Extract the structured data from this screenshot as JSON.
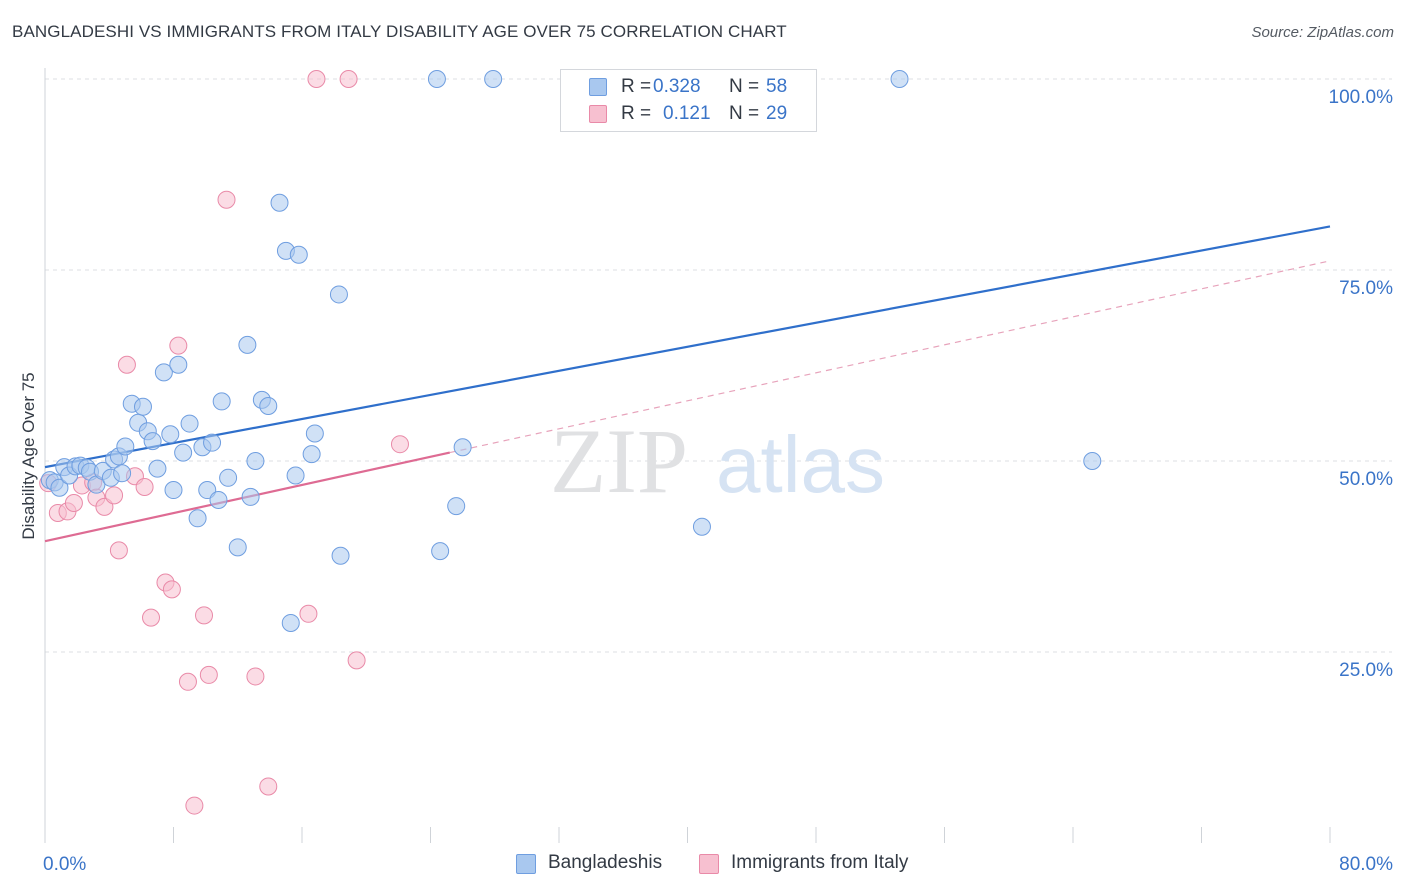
{
  "title": "BANGLADESHI VS IMMIGRANTS FROM ITALY DISABILITY AGE OVER 75 CORRELATION CHART",
  "source": "Source: ZipAtlas.com",
  "watermark": {
    "zip": "ZIP",
    "atlas": "atlas"
  },
  "legend": {
    "rows": [
      {
        "r_label": "R =",
        "r_value": "0.328",
        "n_label": "N =",
        "n_value": "58",
        "color": "#a9c8ef",
        "border": "#6f9ee0"
      },
      {
        "r_label": "R =",
        "r_value": "0.121",
        "n_label": "N =",
        "n_value": "29",
        "color": "#f7c0d0",
        "border": "#e98aa8"
      }
    ]
  },
  "bottom_legend": [
    {
      "label": "Bangladeshis",
      "color": "#a9c8ef",
      "border": "#6f9ee0"
    },
    {
      "label": "Immigrants from Italy",
      "color": "#f7c0d0",
      "border": "#e98aa8"
    }
  ],
  "chart_data": {
    "type": "scatter",
    "title": "BANGLADESHI VS IMMIGRANTS FROM ITALY DISABILITY AGE OVER 75 CORRELATION CHART",
    "xlabel": "",
    "ylabel": "Disability Age Over 75",
    "xlim": [
      0,
      80
    ],
    "ylim": [
      0,
      100
    ],
    "x_ticks": [
      {
        "value": 0,
        "label": "0.0%"
      },
      {
        "value": 80,
        "label": "80.0%"
      }
    ],
    "y_ticks": [
      {
        "value": 25,
        "label": "25.0%"
      },
      {
        "value": 50,
        "label": "50.0%"
      },
      {
        "value": 75,
        "label": "75.0%"
      },
      {
        "value": 100,
        "label": "100.0%"
      }
    ],
    "grid": "horizontal-dashed",
    "legend_position": "top-center",
    "series": [
      {
        "name": "Bangladeshis",
        "color": "#6f9ee0",
        "fill": "#a9c8ef",
        "r": 0.328,
        "n": 58,
        "trend": {
          "x": [
            0,
            80
          ],
          "y": [
            49.2,
            80.7
          ],
          "style": "solid",
          "color": "#2f6fcb"
        },
        "points": [
          [
            0.3,
            47.5
          ],
          [
            0.6,
            47.2
          ],
          [
            0.9,
            46.5
          ],
          [
            1.2,
            49.2
          ],
          [
            1.5,
            48.1
          ],
          [
            1.9,
            49.3
          ],
          [
            2.2,
            49.4
          ],
          [
            2.6,
            49.1
          ],
          [
            2.8,
            48.6
          ],
          [
            3.2,
            46.9
          ],
          [
            3.6,
            48.7
          ],
          [
            4.1,
            47.8
          ],
          [
            4.3,
            50.2
          ],
          [
            4.6,
            50.6
          ],
          [
            4.8,
            48.4
          ],
          [
            5.0,
            51.9
          ],
          [
            5.4,
            57.5
          ],
          [
            5.8,
            55.0
          ],
          [
            6.1,
            57.1
          ],
          [
            6.4,
            53.9
          ],
          [
            6.7,
            52.6
          ],
          [
            7.0,
            49.0
          ],
          [
            7.4,
            61.6
          ],
          [
            7.8,
            53.5
          ],
          [
            8.0,
            46.2
          ],
          [
            8.3,
            62.6
          ],
          [
            8.6,
            51.1
          ],
          [
            9.0,
            54.9
          ],
          [
            9.5,
            42.5
          ],
          [
            9.8,
            51.8
          ],
          [
            10.1,
            46.2
          ],
          [
            10.4,
            52.4
          ],
          [
            10.8,
            44.9
          ],
          [
            11.0,
            57.8
          ],
          [
            11.4,
            47.8
          ],
          [
            12.0,
            38.7
          ],
          [
            12.6,
            65.2
          ],
          [
            12.8,
            45.3
          ],
          [
            13.1,
            50.0
          ],
          [
            13.5,
            58.0
          ],
          [
            13.9,
            57.2
          ],
          [
            14.6,
            83.8
          ],
          [
            15.0,
            77.5
          ],
          [
            15.3,
            28.8
          ],
          [
            15.6,
            48.1
          ],
          [
            15.8,
            77.0
          ],
          [
            16.6,
            50.9
          ],
          [
            16.8,
            53.6
          ],
          [
            18.3,
            71.8
          ],
          [
            18.4,
            37.6
          ],
          [
            24.4,
            100
          ],
          [
            24.6,
            38.2
          ],
          [
            25.6,
            44.1
          ],
          [
            26.0,
            51.8
          ],
          [
            27.9,
            100
          ],
          [
            40.9,
            41.4
          ],
          [
            53.2,
            100
          ],
          [
            65.2,
            50.0
          ]
        ]
      },
      {
        "name": "Immigrants from Italy",
        "color": "#e98aa8",
        "fill": "#f7c0d0",
        "r": 0.121,
        "n": 29,
        "trend": {
          "x": [
            0,
            25.2
          ],
          "y": [
            39.5,
            51.1
          ],
          "style": "solid",
          "color": "#de6b93",
          "extension": {
            "x": [
              25.2,
              80
            ],
            "y": [
              51.1,
              76.2
            ],
            "style": "dashed"
          }
        },
        "points": [
          [
            0.2,
            47.1
          ],
          [
            0.8,
            43.2
          ],
          [
            1.4,
            43.4
          ],
          [
            1.8,
            44.5
          ],
          [
            2.3,
            46.8
          ],
          [
            3.0,
            47.2
          ],
          [
            3.2,
            45.2
          ],
          [
            3.7,
            44.0
          ],
          [
            4.3,
            45.5
          ],
          [
            4.6,
            38.3
          ],
          [
            5.1,
            62.6
          ],
          [
            5.6,
            48.0
          ],
          [
            6.2,
            46.6
          ],
          [
            6.6,
            29.5
          ],
          [
            7.5,
            34.1
          ],
          [
            7.9,
            33.2
          ],
          [
            8.3,
            65.1
          ],
          [
            8.9,
            21.1
          ],
          [
            9.3,
            4.9
          ],
          [
            9.9,
            29.8
          ],
          [
            10.2,
            22.0
          ],
          [
            11.3,
            84.2
          ],
          [
            13.1,
            21.8
          ],
          [
            13.9,
            7.4
          ],
          [
            16.4,
            30.0
          ],
          [
            16.9,
            100
          ],
          [
            18.9,
            100
          ],
          [
            19.4,
            23.9
          ],
          [
            22.1,
            52.2
          ]
        ]
      }
    ]
  }
}
